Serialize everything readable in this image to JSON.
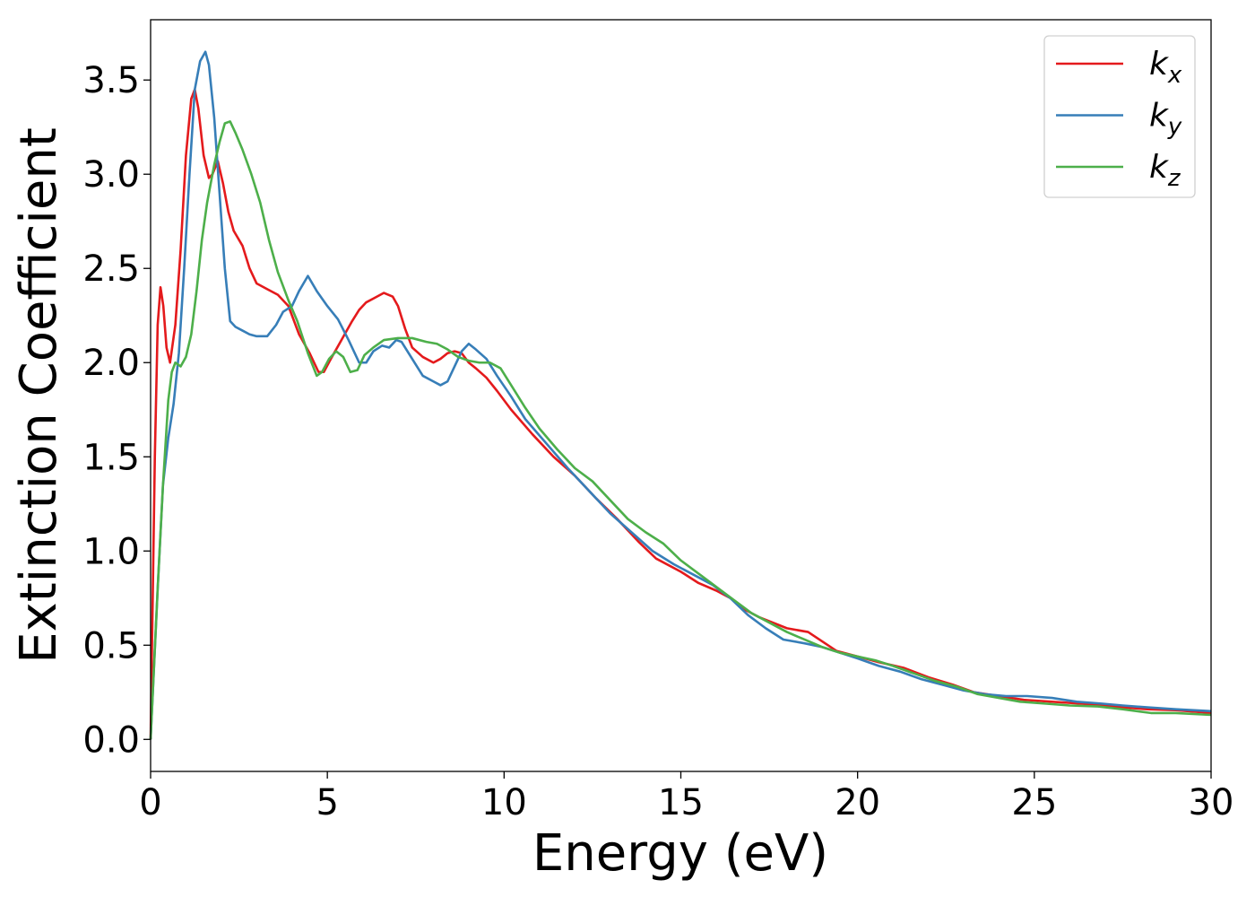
{
  "chart_data": {
    "type": "line",
    "xlabel": "Energy (eV)",
    "ylabel": "Extinction Coefficient",
    "xlim": [
      0,
      30
    ],
    "ylim": [
      -0.17,
      3.82
    ],
    "xticks": [
      0,
      5,
      10,
      15,
      20,
      25,
      30
    ],
    "xtick_labels": [
      "0",
      "5",
      "10",
      "15",
      "20",
      "25",
      "30"
    ],
    "yticks": [
      0.0,
      0.5,
      1.0,
      1.5,
      2.0,
      2.5,
      3.0,
      3.5
    ],
    "ytick_labels": [
      "0.0",
      "0.5",
      "1.0",
      "1.5",
      "2.0",
      "2.5",
      "3.0",
      "3.5"
    ],
    "grid": false,
    "legend_position": "top-right",
    "series": [
      {
        "name": "k_x",
        "label_main": "k",
        "label_sub": "x",
        "color": "#e41a1c",
        "points": [
          [
            0,
            0.0
          ],
          [
            0.12,
            1.5
          ],
          [
            0.2,
            2.2
          ],
          [
            0.28,
            2.4
          ],
          [
            0.36,
            2.3
          ],
          [
            0.45,
            2.08
          ],
          [
            0.55,
            2.0
          ],
          [
            0.7,
            2.2
          ],
          [
            0.85,
            2.6
          ],
          [
            1.0,
            3.1
          ],
          [
            1.15,
            3.4
          ],
          [
            1.25,
            3.45
          ],
          [
            1.35,
            3.35
          ],
          [
            1.5,
            3.1
          ],
          [
            1.65,
            2.98
          ],
          [
            1.75,
            3.0
          ],
          [
            1.9,
            3.07
          ],
          [
            2.05,
            2.95
          ],
          [
            2.2,
            2.8
          ],
          [
            2.35,
            2.7
          ],
          [
            2.6,
            2.62
          ],
          [
            2.8,
            2.5
          ],
          [
            3.0,
            2.42
          ],
          [
            3.3,
            2.39
          ],
          [
            3.6,
            2.36
          ],
          [
            3.9,
            2.3
          ],
          [
            4.2,
            2.15
          ],
          [
            4.5,
            2.05
          ],
          [
            4.75,
            1.95
          ],
          [
            4.9,
            1.95
          ],
          [
            5.1,
            2.02
          ],
          [
            5.4,
            2.12
          ],
          [
            5.7,
            2.22
          ],
          [
            5.9,
            2.28
          ],
          [
            6.1,
            2.32
          ],
          [
            6.3,
            2.34
          ],
          [
            6.6,
            2.37
          ],
          [
            6.85,
            2.35
          ],
          [
            7.0,
            2.3
          ],
          [
            7.2,
            2.18
          ],
          [
            7.4,
            2.08
          ],
          [
            7.7,
            2.03
          ],
          [
            8.0,
            2.0
          ],
          [
            8.2,
            2.02
          ],
          [
            8.4,
            2.05
          ],
          [
            8.6,
            2.06
          ],
          [
            8.8,
            2.05
          ],
          [
            9.0,
            2.0
          ],
          [
            9.2,
            1.97
          ],
          [
            9.5,
            1.92
          ],
          [
            9.8,
            1.85
          ],
          [
            10.2,
            1.75
          ],
          [
            10.8,
            1.62
          ],
          [
            11.4,
            1.5
          ],
          [
            12.0,
            1.4
          ],
          [
            12.6,
            1.28
          ],
          [
            13.2,
            1.17
          ],
          [
            13.8,
            1.05
          ],
          [
            14.3,
            0.96
          ],
          [
            15.0,
            0.89
          ],
          [
            15.5,
            0.83
          ],
          [
            16.0,
            0.79
          ],
          [
            16.4,
            0.75
          ],
          [
            16.8,
            0.69
          ],
          [
            17.2,
            0.65
          ],
          [
            17.6,
            0.62
          ],
          [
            18.0,
            0.59
          ],
          [
            18.6,
            0.57
          ],
          [
            19.0,
            0.52
          ],
          [
            19.4,
            0.47
          ],
          [
            20.0,
            0.44
          ],
          [
            20.6,
            0.41
          ],
          [
            21.3,
            0.38
          ],
          [
            22.0,
            0.33
          ],
          [
            22.7,
            0.29
          ],
          [
            23.3,
            0.25
          ],
          [
            24.0,
            0.23
          ],
          [
            24.7,
            0.21
          ],
          [
            25.5,
            0.2
          ],
          [
            26.3,
            0.19
          ],
          [
            27.0,
            0.18
          ],
          [
            27.5,
            0.17
          ],
          [
            28.2,
            0.16
          ],
          [
            29.0,
            0.155
          ],
          [
            30.0,
            0.14
          ]
        ]
      },
      {
        "name": "k_y",
        "label_main": "k",
        "label_sub": "y",
        "color": "#377eb8",
        "points": [
          [
            0,
            0.0
          ],
          [
            0.2,
            0.8
          ],
          [
            0.35,
            1.35
          ],
          [
            0.5,
            1.6
          ],
          [
            0.65,
            1.78
          ],
          [
            0.8,
            2.05
          ],
          [
            0.95,
            2.5
          ],
          [
            1.1,
            3.0
          ],
          [
            1.25,
            3.45
          ],
          [
            1.4,
            3.6
          ],
          [
            1.55,
            3.65
          ],
          [
            1.65,
            3.58
          ],
          [
            1.8,
            3.3
          ],
          [
            1.95,
            2.9
          ],
          [
            2.1,
            2.5
          ],
          [
            2.25,
            2.22
          ],
          [
            2.4,
            2.19
          ],
          [
            2.6,
            2.17
          ],
          [
            2.8,
            2.15
          ],
          [
            3.0,
            2.14
          ],
          [
            3.3,
            2.14
          ],
          [
            3.55,
            2.2
          ],
          [
            3.75,
            2.27
          ],
          [
            4.0,
            2.3
          ],
          [
            4.2,
            2.38
          ],
          [
            4.45,
            2.46
          ],
          [
            4.7,
            2.38
          ],
          [
            5.0,
            2.3
          ],
          [
            5.3,
            2.23
          ],
          [
            5.6,
            2.12
          ],
          [
            5.9,
            2.0
          ],
          [
            6.1,
            2.0
          ],
          [
            6.3,
            2.06
          ],
          [
            6.55,
            2.09
          ],
          [
            6.75,
            2.08
          ],
          [
            6.95,
            2.12
          ],
          [
            7.1,
            2.11
          ],
          [
            7.4,
            2.02
          ],
          [
            7.7,
            1.93
          ],
          [
            8.0,
            1.9
          ],
          [
            8.2,
            1.88
          ],
          [
            8.4,
            1.9
          ],
          [
            8.6,
            1.98
          ],
          [
            8.8,
            2.06
          ],
          [
            9.0,
            2.1
          ],
          [
            9.2,
            2.07
          ],
          [
            9.5,
            2.02
          ],
          [
            9.8,
            1.93
          ],
          [
            10.2,
            1.82
          ],
          [
            10.6,
            1.7
          ],
          [
            11.2,
            1.57
          ],
          [
            11.8,
            1.44
          ],
          [
            12.4,
            1.32
          ],
          [
            13.0,
            1.2
          ],
          [
            13.6,
            1.1
          ],
          [
            14.2,
            1.0
          ],
          [
            14.8,
            0.93
          ],
          [
            15.4,
            0.87
          ],
          [
            15.9,
            0.82
          ],
          [
            16.4,
            0.75
          ],
          [
            16.9,
            0.66
          ],
          [
            17.4,
            0.59
          ],
          [
            17.9,
            0.53
          ],
          [
            18.5,
            0.51
          ],
          [
            19.0,
            0.49
          ],
          [
            19.5,
            0.46
          ],
          [
            20.0,
            0.43
          ],
          [
            20.6,
            0.39
          ],
          [
            21.2,
            0.36
          ],
          [
            21.8,
            0.32
          ],
          [
            22.4,
            0.29
          ],
          [
            23.0,
            0.26
          ],
          [
            23.6,
            0.24
          ],
          [
            24.2,
            0.23
          ],
          [
            24.8,
            0.23
          ],
          [
            25.5,
            0.22
          ],
          [
            26.2,
            0.2
          ],
          [
            26.9,
            0.19
          ],
          [
            27.5,
            0.18
          ],
          [
            28.2,
            0.17
          ],
          [
            29.0,
            0.16
          ],
          [
            30.0,
            0.15
          ]
        ]
      },
      {
        "name": "k_z",
        "label_main": "k",
        "label_sub": "z",
        "color": "#4daf4a",
        "points": [
          [
            0,
            0.0
          ],
          [
            0.2,
            0.8
          ],
          [
            0.35,
            1.35
          ],
          [
            0.5,
            1.8
          ],
          [
            0.6,
            1.95
          ],
          [
            0.7,
            2.0
          ],
          [
            0.85,
            1.98
          ],
          [
            1.0,
            2.03
          ],
          [
            1.15,
            2.15
          ],
          [
            1.3,
            2.38
          ],
          [
            1.45,
            2.65
          ],
          [
            1.6,
            2.85
          ],
          [
            1.8,
            3.05
          ],
          [
            1.95,
            3.17
          ],
          [
            2.1,
            3.27
          ],
          [
            2.25,
            3.28
          ],
          [
            2.4,
            3.22
          ],
          [
            2.6,
            3.13
          ],
          [
            2.85,
            3.0
          ],
          [
            3.1,
            2.85
          ],
          [
            3.35,
            2.65
          ],
          [
            3.6,
            2.48
          ],
          [
            3.9,
            2.33
          ],
          [
            4.15,
            2.22
          ],
          [
            4.45,
            2.05
          ],
          [
            4.7,
            1.93
          ],
          [
            4.85,
            1.95
          ],
          [
            5.05,
            2.02
          ],
          [
            5.25,
            2.06
          ],
          [
            5.45,
            2.03
          ],
          [
            5.65,
            1.95
          ],
          [
            5.85,
            1.96
          ],
          [
            6.05,
            2.04
          ],
          [
            6.3,
            2.08
          ],
          [
            6.6,
            2.12
          ],
          [
            7.0,
            2.13
          ],
          [
            7.4,
            2.13
          ],
          [
            7.8,
            2.11
          ],
          [
            8.1,
            2.1
          ],
          [
            8.4,
            2.07
          ],
          [
            8.7,
            2.03
          ],
          [
            9.0,
            2.01
          ],
          [
            9.3,
            2.0
          ],
          [
            9.6,
            2.0
          ],
          [
            9.9,
            1.97
          ],
          [
            10.2,
            1.88
          ],
          [
            10.6,
            1.76
          ],
          [
            11.0,
            1.65
          ],
          [
            11.5,
            1.54
          ],
          [
            12.0,
            1.44
          ],
          [
            12.5,
            1.37
          ],
          [
            13.0,
            1.27
          ],
          [
            13.5,
            1.17
          ],
          [
            14.0,
            1.1
          ],
          [
            14.5,
            1.04
          ],
          [
            15.0,
            0.95
          ],
          [
            15.5,
            0.88
          ],
          [
            16.0,
            0.81
          ],
          [
            16.5,
            0.74
          ],
          [
            17.0,
            0.67
          ],
          [
            17.5,
            0.62
          ],
          [
            18.0,
            0.57
          ],
          [
            18.5,
            0.53
          ],
          [
            19.0,
            0.49
          ],
          [
            19.5,
            0.46
          ],
          [
            20.0,
            0.44
          ],
          [
            20.5,
            0.42
          ],
          [
            21.0,
            0.39
          ],
          [
            21.6,
            0.35
          ],
          [
            22.2,
            0.31
          ],
          [
            22.8,
            0.28
          ],
          [
            23.4,
            0.24
          ],
          [
            24.0,
            0.22
          ],
          [
            24.6,
            0.2
          ],
          [
            25.3,
            0.19
          ],
          [
            26.0,
            0.18
          ],
          [
            26.8,
            0.175
          ],
          [
            27.5,
            0.16
          ],
          [
            28.3,
            0.14
          ],
          [
            29.0,
            0.14
          ],
          [
            30.0,
            0.13
          ]
        ]
      }
    ]
  }
}
